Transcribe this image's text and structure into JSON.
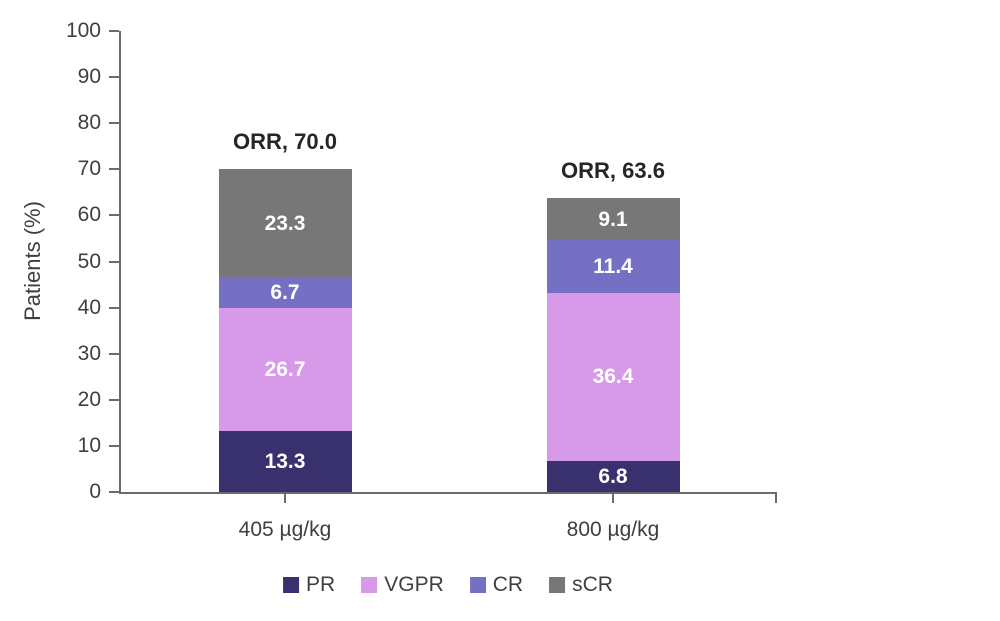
{
  "figure": {
    "background": "#ffffff",
    "axis_color": "#6b6b6b",
    "text_color": "#3f3f3f",
    "total_label_color": "#262626",
    "segment_label_color": "#ffffff"
  },
  "chart_data": {
    "type": "bar",
    "stacked": true,
    "title": "",
    "xlabel": "",
    "ylabel": "Patients (%)",
    "ylim": [
      0,
      100
    ],
    "yticks": [
      0,
      10,
      20,
      30,
      40,
      50,
      60,
      70,
      80,
      90,
      100
    ],
    "grid": false,
    "categories": [
      "405 µg/kg",
      "800 µg/kg"
    ],
    "series": [
      {
        "name": "PR",
        "color": "#39316e",
        "values": [
          13.3,
          6.8
        ]
      },
      {
        "name": "VGPR",
        "color": "#d69ae8",
        "values": [
          26.7,
          36.4
        ]
      },
      {
        "name": "CR",
        "color": "#7570c4",
        "values": [
          6.7,
          11.4
        ]
      },
      {
        "name": "sCR",
        "color": "#777777",
        "values": [
          23.3,
          9.1
        ]
      }
    ],
    "bar_total_labels": [
      "ORR, 70.0",
      "ORR, 63.6"
    ],
    "legend": {
      "position": "bottom",
      "entries": [
        "PR",
        "VGPR",
        "CR",
        "sCR"
      ]
    }
  }
}
